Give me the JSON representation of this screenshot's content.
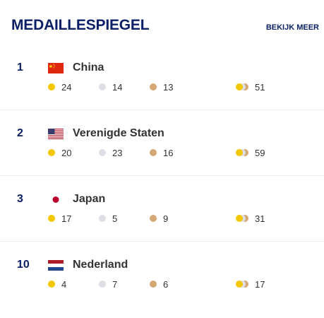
{
  "header": {
    "title": "MEDAILLESPIEGEL",
    "view_more": "BEKIJK MEER"
  },
  "colors": {
    "brand": "#0a1f66",
    "gold": "#f3c701",
    "silver": "#dedee6",
    "bronze": "#d4a874"
  },
  "icons": {
    "gold": "gold-medal-dot-icon",
    "silver": "silver-medal-dot-icon",
    "bronze": "bronze-medal-dot-icon",
    "total": "total-medals-icon"
  },
  "rows": [
    {
      "rank": "1",
      "country": "China",
      "flag": "china-flag-icon",
      "gold": "24",
      "silver": "14",
      "bronze": "13",
      "total": "51"
    },
    {
      "rank": "2",
      "country": "Verenigde Staten",
      "flag": "usa-flag-icon",
      "gold": "20",
      "silver": "23",
      "bronze": "16",
      "total": "59"
    },
    {
      "rank": "3",
      "country": "Japan",
      "flag": "japan-flag-icon",
      "gold": "17",
      "silver": "5",
      "bronze": "9",
      "total": "31"
    },
    {
      "rank": "10",
      "country": "Nederland",
      "flag": "netherlands-flag-icon",
      "gold": "4",
      "silver": "7",
      "bronze": "6",
      "total": "17"
    }
  ]
}
